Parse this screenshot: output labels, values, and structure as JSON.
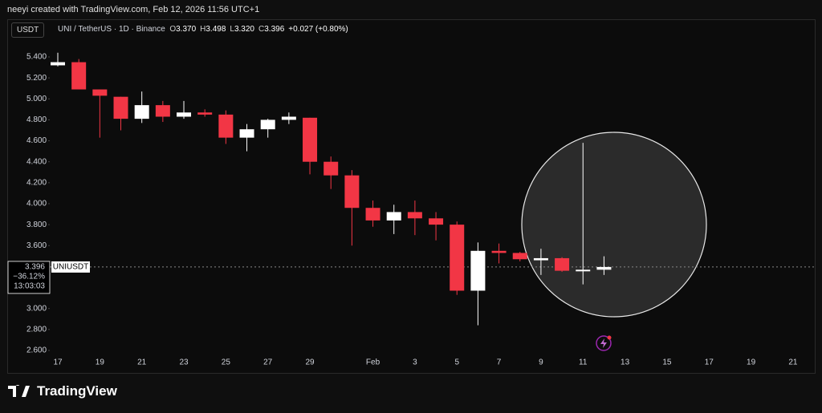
{
  "header": {
    "attribution": "neeyi created with TradingView.com, Feb 12, 2026 11:56 UTC+1",
    "currency": "USDT",
    "symbol": "UNI / TetherUS · 1D · Binance",
    "ohlc": [
      {
        "label": "O",
        "value": "3.370"
      },
      {
        "label": "H",
        "value": "3.498"
      },
      {
        "label": "L",
        "value": "3.320"
      },
      {
        "label": "C",
        "value": "3.396"
      }
    ],
    "change": "+0.027 (+0.80%)"
  },
  "chart_data": {
    "type": "candlestick",
    "categories": [
      "17",
      null,
      "19",
      null,
      "21",
      null,
      "23",
      null,
      "25",
      null,
      "27",
      null,
      "29",
      null,
      null,
      "Feb",
      null,
      "3",
      null,
      "5",
      null,
      "7",
      null,
      "9",
      null,
      "11",
      null,
      "13",
      null,
      "15",
      null,
      "17",
      null,
      "19",
      null,
      "21"
    ],
    "open": [
      5.32,
      5.35,
      5.09,
      5.02,
      4.81,
      4.94,
      4.83,
      4.87,
      4.85,
      4.63,
      4.71,
      4.8,
      4.82,
      4.4,
      4.27,
      3.96,
      3.84,
      3.92,
      3.86,
      3.8,
      3.17,
      3.55,
      3.53,
      3.46,
      3.48,
      3.36,
      3.37,
      null,
      null,
      null,
      null,
      null,
      null,
      null,
      null,
      null
    ],
    "high": [
      5.44,
      5.38,
      5.09,
      5.02,
      5.07,
      4.98,
      4.98,
      4.9,
      4.89,
      4.76,
      4.81,
      4.87,
      4.82,
      4.45,
      4.32,
      4.03,
      3.99,
      4.03,
      3.92,
      3.83,
      3.63,
      3.62,
      3.54,
      3.57,
      3.49,
      4.58,
      3.498,
      null,
      null,
      null,
      null,
      null,
      null,
      null,
      null,
      null
    ],
    "low": [
      5.31,
      5.09,
      4.63,
      4.7,
      4.77,
      4.78,
      4.81,
      4.83,
      4.57,
      4.5,
      4.63,
      4.76,
      4.28,
      4.14,
      3.6,
      3.78,
      3.71,
      3.7,
      3.65,
      3.13,
      2.84,
      3.43,
      3.45,
      3.32,
      3.35,
      3.23,
      3.32,
      null,
      null,
      null,
      null,
      null,
      null,
      null,
      null,
      null
    ],
    "close": [
      5.35,
      5.09,
      5.03,
      4.81,
      4.94,
      4.83,
      4.87,
      4.85,
      4.63,
      4.71,
      4.8,
      4.83,
      4.4,
      4.27,
      3.96,
      3.84,
      3.92,
      3.86,
      3.8,
      3.17,
      3.55,
      3.53,
      3.47,
      3.48,
      3.36,
      3.37,
      3.396,
      null,
      null,
      null,
      null,
      null,
      null,
      null,
      null,
      null
    ],
    "up_color": "#ffffff",
    "down_color": "#f23645",
    "ylim": [
      2.58,
      5.5
    ],
    "yticks": [
      {
        "value": 2.6,
        "label": "2.600"
      },
      {
        "value": 2.8,
        "label": "2.800"
      },
      {
        "value": 3.0,
        "label": "3.000"
      },
      {
        "value": 3.6,
        "label": "3.600"
      },
      {
        "value": 3.8,
        "label": "3.800"
      },
      {
        "value": 4.0,
        "label": "4.000"
      },
      {
        "value": 4.2,
        "label": "4.200"
      },
      {
        "value": 4.4,
        "label": "4.400"
      },
      {
        "value": 4.6,
        "label": "4.600"
      },
      {
        "value": 4.8,
        "label": "4.800"
      },
      {
        "value": 5.0,
        "label": "5.000"
      },
      {
        "value": 5.2,
        "label": "5.200"
      },
      {
        "value": 5.4,
        "label": "5.400"
      }
    ],
    "last_price": 3.396,
    "price_label": {
      "price": "3.396",
      "change": "−36.12%",
      "countdown": "13:03:03",
      "ticker": "UNIUSDT"
    }
  },
  "footer": {
    "logo": "TradingView"
  }
}
